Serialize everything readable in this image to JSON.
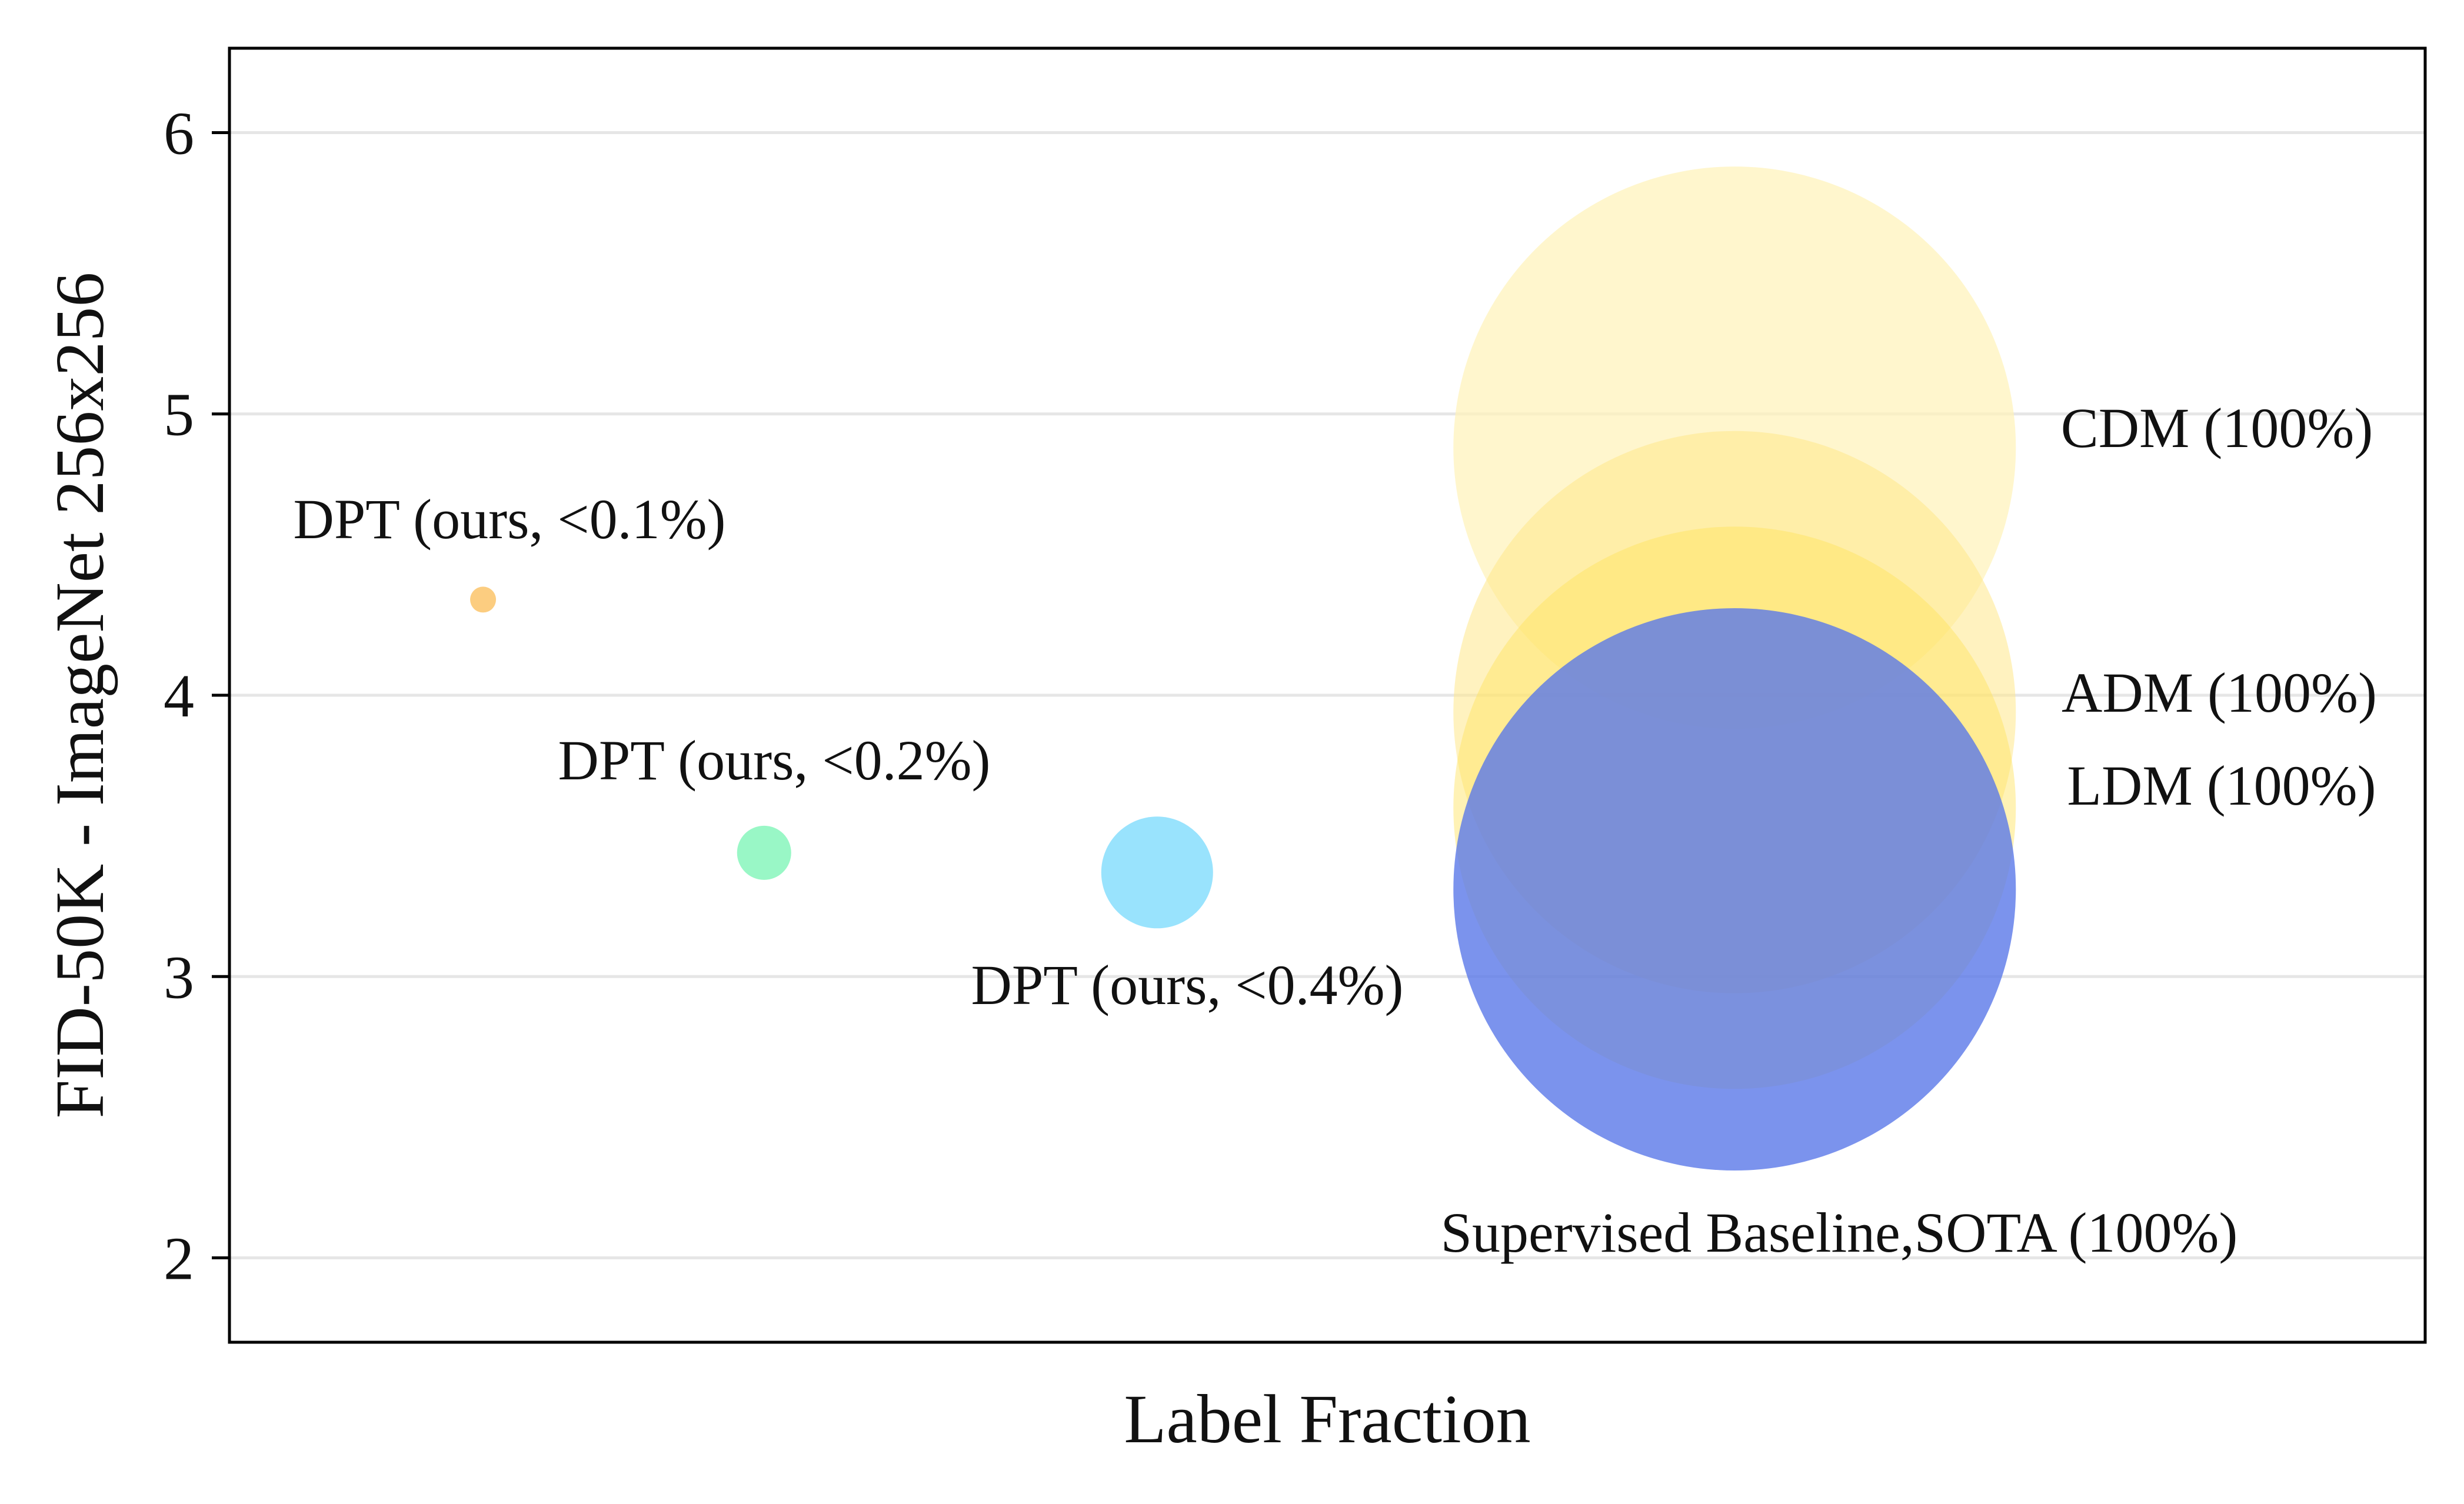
{
  "chart_data": {
    "type": "scatter",
    "title": "",
    "xlabel": "Label Fraction",
    "ylabel": "FID-50K - ImageNet 256x256",
    "ylim": [
      1.7,
      6.3
    ],
    "yticks": [
      2,
      3,
      4,
      5,
      6
    ],
    "grid": "horizontal",
    "xticks_visible": false,
    "points": [
      {
        "label": "DPT (ours, <0.1%)",
        "x": 0.1,
        "y": 4.34,
        "size": 0.1,
        "color": "#fbc46a",
        "alpha": 0.85,
        "label_position": "above"
      },
      {
        "label": "DPT (ours, <0.2%)",
        "x": 0.2,
        "y": 3.44,
        "size": 0.2,
        "color": "#7ff5b8",
        "alpha": 0.8,
        "label_position": "above-right"
      },
      {
        "label": "DPT (ours, <0.4%)",
        "x": 0.4,
        "y": 3.37,
        "size": 0.4,
        "color": "#7fdcfd",
        "alpha": 0.8,
        "label_position": "below"
      },
      {
        "label": "CDM (100%)",
        "x": 100,
        "y": 4.88,
        "size": 100,
        "color": "#fff2b8",
        "alpha": 0.7,
        "label_position": "right"
      },
      {
        "label": "ADM (100%)",
        "x": 100,
        "y": 3.94,
        "size": 100,
        "color": "#ffe88a",
        "alpha": 0.55,
        "label_position": "right"
      },
      {
        "label": "LDM (100%)",
        "x": 100,
        "y": 3.6,
        "size": 100,
        "color": "#ffe25a",
        "alpha": 0.45,
        "label_position": "right"
      },
      {
        "label": "Supervised Baseline,SOTA (100%)",
        "x": 100,
        "y": 3.31,
        "size": 100,
        "color": "#5a78e8",
        "alpha": 0.8,
        "label_position": "below"
      }
    ]
  }
}
